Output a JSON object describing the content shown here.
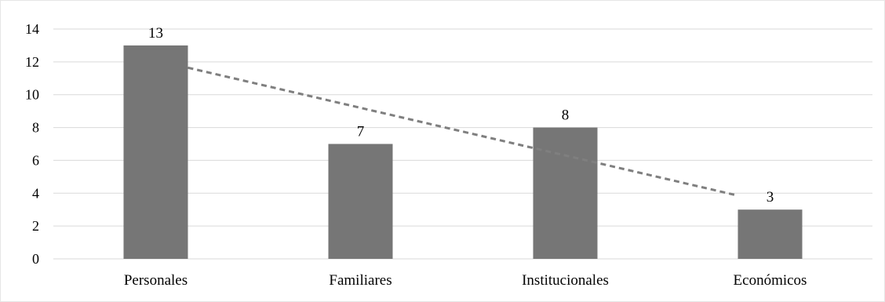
{
  "chart_data": {
    "type": "bar",
    "title": "",
    "xlabel": "",
    "ylabel": "",
    "categories": [
      "Personales",
      "Familiares",
      "Institucionales",
      "Económicos"
    ],
    "values": [
      13,
      7,
      8,
      3
    ],
    "data_labels": [
      "13",
      "7",
      "8",
      "3"
    ],
    "ylim": [
      0,
      14
    ],
    "yticks": [
      "0",
      "2",
      "4",
      "6",
      "8",
      "10",
      "12",
      "14"
    ],
    "grid": true,
    "legend": "none",
    "trendline": {
      "type": "linear",
      "style": "dashed",
      "color": "#7f7f7f"
    },
    "bar_color": "#767676"
  }
}
